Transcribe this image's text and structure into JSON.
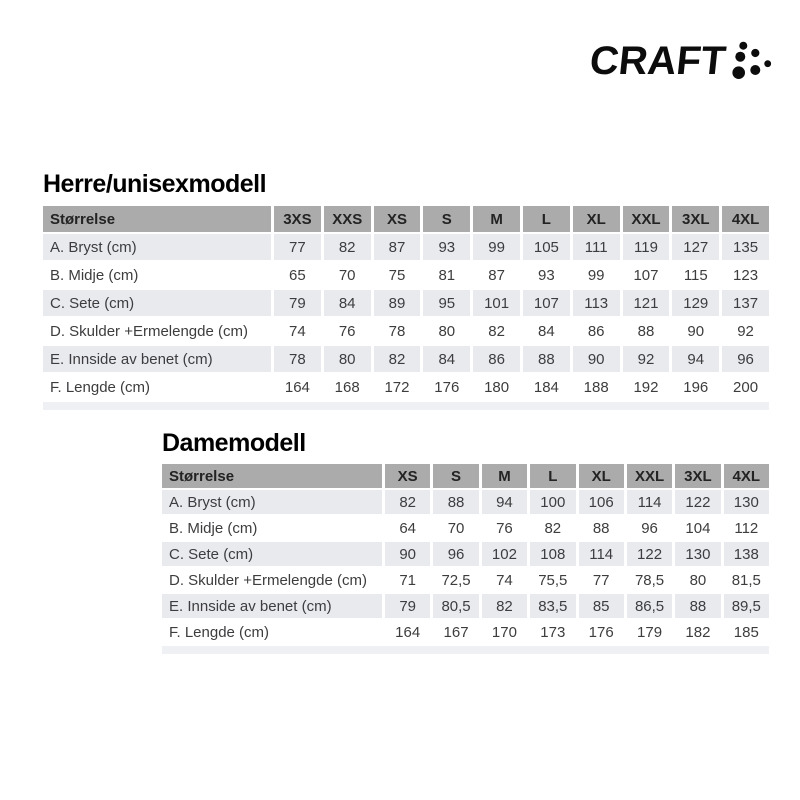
{
  "brand": {
    "logo_text": "CRAFT",
    "logo_color": "#0c0c0c",
    "logo_dots_icon": "craft-dots-icon"
  },
  "colors": {
    "header_bg": "#ababab",
    "stripe_bg": "#e9eaee",
    "footer_strip_bg": "#eff0f3",
    "text": "#3d3d3f",
    "header_text": "#232323"
  },
  "tables": [
    {
      "title": "Herre/unisexmodell",
      "header": [
        "Størrelse",
        "3XS",
        "XXS",
        "XS",
        "S",
        "M",
        "L",
        "XL",
        "XXL",
        "3XL",
        "4XL"
      ],
      "rows": [
        {
          "label": "A. Bryst (cm)",
          "values": [
            "77",
            "82",
            "87",
            "93",
            "99",
            "105",
            "111",
            "119",
            "127",
            "135"
          ]
        },
        {
          "label": "B. Midje (cm)",
          "values": [
            "65",
            "70",
            "75",
            "81",
            "87",
            "93",
            "99",
            "107",
            "115",
            "123"
          ]
        },
        {
          "label": "C. Sete (cm)",
          "values": [
            "79",
            "84",
            "89",
            "95",
            "101",
            "107",
            "113",
            "121",
            "129",
            "137"
          ]
        },
        {
          "label": "D. Skulder +Ermelengde (cm)",
          "values": [
            "74",
            "76",
            "78",
            "80",
            "82",
            "84",
            "86",
            "88",
            "90",
            "92"
          ]
        },
        {
          "label": "E. Innside av benet (cm)",
          "values": [
            "78",
            "80",
            "82",
            "84",
            "86",
            "88",
            "90",
            "92",
            "94",
            "96"
          ]
        },
        {
          "label": "F. Lengde (cm)",
          "values": [
            "164",
            "168",
            "172",
            "176",
            "180",
            "184",
            "188",
            "192",
            "196",
            "200"
          ]
        }
      ]
    },
    {
      "title": "Damemodell",
      "header": [
        "Størrelse",
        "XS",
        "S",
        "M",
        "L",
        "XL",
        "XXL",
        "3XL",
        "4XL"
      ],
      "rows": [
        {
          "label": "A. Bryst (cm)",
          "values": [
            "82",
            "88",
            "94",
            "100",
            "106",
            "114",
            "122",
            "130"
          ]
        },
        {
          "label": "B. Midje (cm)",
          "values": [
            "64",
            "70",
            "76",
            "82",
            "88",
            "96",
            "104",
            "112"
          ]
        },
        {
          "label": "C. Sete (cm)",
          "values": [
            "90",
            "96",
            "102",
            "108",
            "114",
            "122",
            "130",
            "138"
          ]
        },
        {
          "label": "D. Skulder +Ermelengde (cm)",
          "values": [
            "71",
            "72,5",
            "74",
            "75,5",
            "77",
            "78,5",
            "80",
            "81,5"
          ]
        },
        {
          "label": "E. Innside av benet (cm)",
          "values": [
            "79",
            "80,5",
            "82",
            "83,5",
            "85",
            "86,5",
            "88",
            "89,5"
          ]
        },
        {
          "label": "F. Lengde (cm)",
          "values": [
            "164",
            "167",
            "170",
            "173",
            "176",
            "179",
            "182",
            "185"
          ]
        }
      ]
    }
  ]
}
